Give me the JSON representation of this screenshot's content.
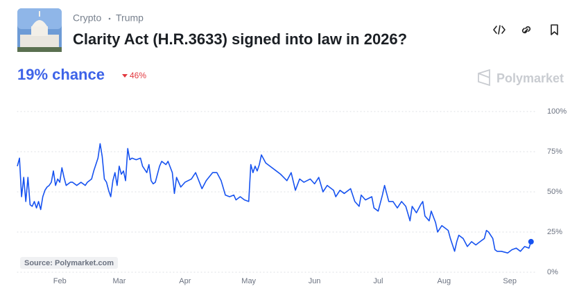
{
  "header": {
    "breadcrumbs": [
      "Crypto",
      "Trump"
    ],
    "title": "Clarity Act (H.R.3633) signed into law in 2026?"
  },
  "summary": {
    "chance": "19% chance",
    "change": "46%"
  },
  "brand": "Polymarket",
  "source": "Source: Polymarket.com",
  "chart_data": {
    "type": "line",
    "color": "#1652f0",
    "x": [
      12,
      13,
      14,
      15,
      16,
      17,
      18,
      19,
      20,
      21,
      22,
      23,
      24,
      25,
      26,
      27,
      28,
      29,
      30,
      31,
      32,
      33,
      34,
      35,
      37,
      38,
      40,
      42,
      44,
      45,
      47,
      48,
      50,
      51,
      52,
      53,
      54,
      55,
      56,
      57,
      58,
      59,
      60,
      61,
      62,
      63,
      64,
      65,
      66,
      68,
      70,
      71,
      73,
      74,
      75,
      76,
      77,
      79,
      80,
      82,
      83,
      85,
      86,
      87,
      89,
      91,
      94,
      96,
      99,
      101,
      104,
      106,
      108,
      110,
      112,
      114,
      115,
      117,
      119,
      121,
      122,
      123,
      124,
      125,
      126,
      127,
      129,
      131,
      134,
      136,
      139,
      141,
      143,
      145,
      147,
      150,
      152,
      154,
      156,
      158,
      161,
      162,
      164,
      166,
      169,
      171,
      173,
      174,
      176,
      179,
      180,
      182,
      184,
      185,
      187,
      189,
      191,
      193,
      195,
      197,
      198,
      200,
      202,
      203,
      204,
      206,
      207,
      209,
      210,
      212,
      214,
      215,
      216,
      218,
      219,
      220,
      222,
      224,
      226,
      228,
      230,
      232,
      233,
      234,
      236,
      237,
      238,
      240,
      243,
      245,
      247,
      249,
      251,
      253,
      254
    ],
    "values": [
      66,
      71,
      47,
      59,
      44,
      59,
      42,
      41,
      44,
      40,
      44,
      39,
      47,
      51,
      53,
      54,
      56,
      63,
      54,
      58,
      56,
      65,
      59,
      54,
      56,
      56,
      54,
      56,
      54,
      56,
      58,
      63,
      71,
      80,
      72,
      58,
      56,
      51,
      47,
      57,
      62,
      54,
      66,
      61,
      63,
      57,
      77,
      70,
      71,
      70,
      71,
      66,
      62,
      67,
      57,
      55,
      56,
      66,
      69,
      67,
      69,
      62,
      49,
      59,
      53,
      56,
      58,
      62,
      52,
      57,
      62,
      62,
      57,
      48,
      47,
      48,
      45,
      47,
      45,
      44,
      67,
      62,
      66,
      63,
      67,
      73,
      68,
      66,
      63,
      61,
      57,
      62,
      51,
      58,
      56,
      58,
      55,
      59,
      50,
      54,
      51,
      47,
      51,
      49,
      52,
      44,
      41,
      48,
      45,
      47,
      40,
      38,
      48,
      54,
      44,
      44,
      40,
      44,
      41,
      32,
      41,
      37,
      42,
      44,
      35,
      32,
      38,
      31,
      25,
      29,
      27,
      26,
      21,
      13,
      19,
      23,
      21,
      16,
      19,
      17,
      19,
      21,
      26,
      25,
      21,
      14,
      13,
      13,
      12,
      14,
      15,
      13,
      16,
      15,
      19
    ],
    "xlim": [
      12,
      257
    ],
    "xticks": [
      {
        "value": 32,
        "label": "Feb"
      },
      {
        "value": 60,
        "label": "Mar"
      },
      {
        "value": 91,
        "label": "Apr"
      },
      {
        "value": 121,
        "label": "May"
      },
      {
        "value": 152,
        "label": "Jun"
      },
      {
        "value": 182,
        "label": "Jul"
      },
      {
        "value": 213,
        "label": "Aug"
      },
      {
        "value": 244,
        "label": "Sep"
      }
    ],
    "ylim": [
      0,
      100
    ],
    "yticks": [
      {
        "value": 0,
        "label": "0%"
      },
      {
        "value": 25,
        "label": "25%"
      },
      {
        "value": 50,
        "label": "50%"
      },
      {
        "value": 75,
        "label": "75%"
      },
      {
        "value": 100,
        "label": "100%"
      }
    ],
    "grid": true
  }
}
